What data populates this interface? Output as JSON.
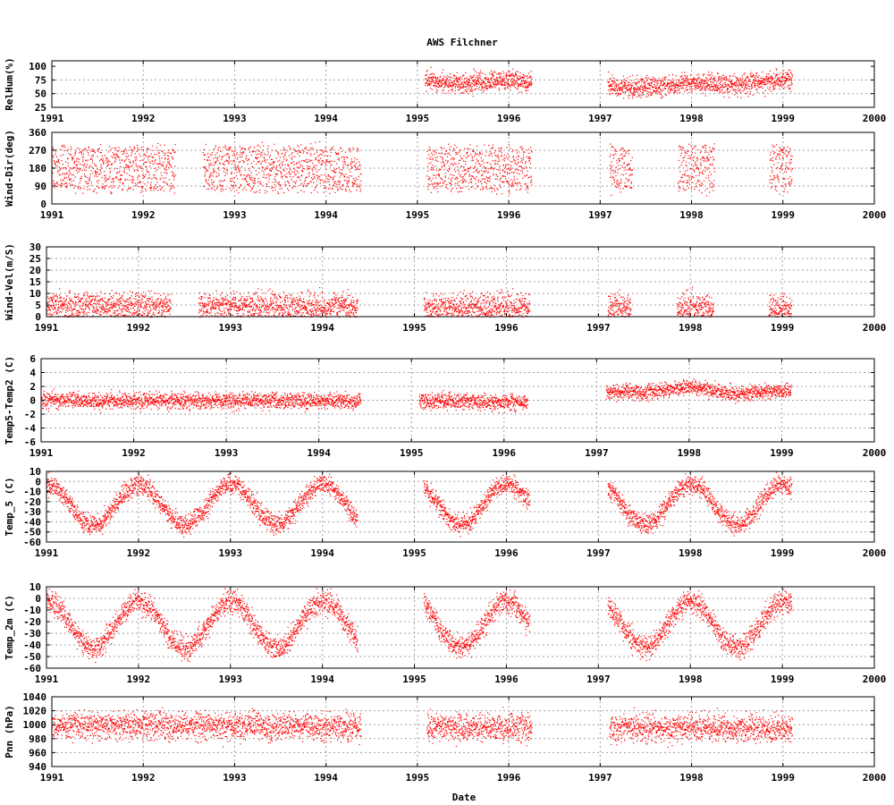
{
  "chart_data": {
    "type": "scatter",
    "title": "AWS Filchner",
    "xlabel": "Date",
    "x_ticks": [
      "1991",
      "1992",
      "1993",
      "1994",
      "1995",
      "1996",
      "1997",
      "1998",
      "1999",
      "2000"
    ],
    "xlim": [
      1991,
      2000
    ],
    "grid": true,
    "marker_color": "#ff0000",
    "panels": [
      {
        "ylabel": "RelHum(%)",
        "ylim": [
          25,
          110
        ],
        "yticks": [
          25,
          50,
          75,
          100
        ],
        "tick_labels": [
          "25",
          "50",
          "75",
          "100"
        ],
        "values": {
          "segments": [
            [
              1995.08,
              1996.25
            ],
            [
              1997.08,
              1999.1
            ]
          ],
          "mean": [
            [
              1995.1,
              75
            ],
            [
              1995.5,
              68
            ],
            [
              1996.0,
              77
            ],
            [
              1996.25,
              72
            ],
            [
              1997.1,
              65
            ],
            [
              1997.5,
              62
            ],
            [
              1998.0,
              70
            ],
            [
              1998.5,
              67
            ],
            [
              1999.0,
              76
            ]
          ],
          "spread": 13
        }
      },
      {
        "ylabel": "Wind-Dir(deg)",
        "ylim": [
          0,
          360
        ],
        "yticks": [
          0,
          90,
          180,
          270,
          360
        ],
        "tick_labels": [
          "0",
          "90",
          "180",
          "270",
          "360"
        ],
        "values": {
          "segments": [
            [
              1991.0,
              1992.35
            ],
            [
              1992.65,
              1994.38
            ],
            [
              1995.1,
              1996.25
            ],
            [
              1997.1,
              1997.35
            ],
            [
              1997.85,
              1998.25
            ],
            [
              1998.85,
              1999.1
            ]
          ],
          "mean": [
            [
              1991.0,
              200
            ],
            [
              1999.1,
              200
            ]
          ],
          "spread": 150
        }
      },
      {
        "ylabel": "Wind-Vel(m/S)",
        "ylim": [
          0,
          30
        ],
        "yticks": [
          0,
          5,
          10,
          15,
          20,
          25,
          30
        ],
        "tick_labels": [
          "0",
          "5",
          "10",
          "15",
          "20",
          "25",
          "30"
        ],
        "values": {
          "segments": [
            [
              1991.0,
              1992.35
            ],
            [
              1992.65,
              1994.38
            ],
            [
              1995.1,
              1996.25
            ],
            [
              1997.1,
              1997.35
            ],
            [
              1997.85,
              1998.25
            ],
            [
              1998.85,
              1999.1
            ]
          ],
          "mean": [
            [
              1991.0,
              5
            ],
            [
              1999.1,
              4
            ]
          ],
          "spread": 5
        }
      },
      {
        "ylabel": "Temp5-Temp2 (C)",
        "ylim": [
          -6,
          6
        ],
        "yticks": [
          -6,
          -4,
          -2,
          0,
          2,
          4,
          6
        ],
        "tick_labels": [
          "-6",
          "-4",
          "-2",
          "0",
          "2",
          "4",
          "6"
        ],
        "values": {
          "segments": [
            [
              1991.0,
              1994.45
            ],
            [
              1995.08,
              1996.25
            ],
            [
              1997.1,
              1999.1
            ]
          ],
          "mean": [
            [
              1991.0,
              0
            ],
            [
              1994.45,
              0
            ],
            [
              1995.1,
              0
            ],
            [
              1996.25,
              -0.3
            ],
            [
              1997.1,
              1.5
            ],
            [
              1997.5,
              1.2
            ],
            [
              1998.0,
              2.0
            ],
            [
              1998.5,
              1.0
            ],
            [
              1999.1,
              1.5
            ]
          ],
          "spread": 0.8
        }
      },
      {
        "ylabel": "Temp_5 (C)",
        "ylim": [
          -60,
          10
        ],
        "yticks": [
          -60,
          -50,
          -40,
          -30,
          -20,
          -10,
          0,
          10
        ],
        "tick_labels": [
          "-60",
          "-50",
          "-40",
          "-30",
          "-20",
          "-10",
          "0",
          "10"
        ],
        "values": {
          "segments": [
            [
              1991.0,
              1994.38
            ],
            [
              1995.1,
              1996.25
            ],
            [
              1997.1,
              1999.1
            ]
          ],
          "mean": "seasonal",
          "spread": 7
        }
      },
      {
        "ylabel": "Temp_2m (C)",
        "ylim": [
          -60,
          10
        ],
        "yticks": [
          -60,
          -50,
          -40,
          -30,
          -20,
          -10,
          0,
          10
        ],
        "tick_labels": [
          "-60",
          "-50",
          "-40",
          "-30",
          "-20",
          "-10",
          "0",
          "10"
        ],
        "values": {
          "segments": [
            [
              1991.0,
              1994.38
            ],
            [
              1995.1,
              1996.25
            ],
            [
              1997.1,
              1999.1
            ]
          ],
          "mean": "seasonal",
          "spread": 7
        }
      },
      {
        "ylabel": "Pnn (hPa)",
        "ylim": [
          940,
          1040
        ],
        "yticks": [
          940,
          960,
          980,
          1000,
          1020,
          1040
        ],
        "tick_labels": [
          "940",
          "960",
          "980",
          "1000",
          "1020",
          "1040"
        ],
        "values": {
          "segments": [
            [
              1991.0,
              1994.38
            ],
            [
              1995.1,
              1996.25
            ],
            [
              1997.1,
              1999.1
            ]
          ],
          "mean": [
            [
              1991.0,
              1000
            ],
            [
              1999.1,
              995
            ]
          ],
          "spread": 14
        }
      }
    ]
  }
}
